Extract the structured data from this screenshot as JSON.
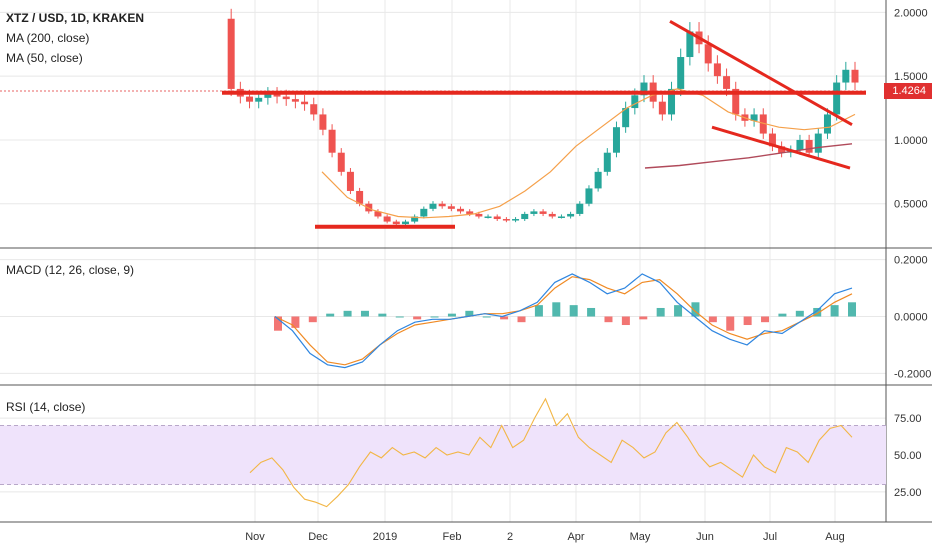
{
  "legend": {
    "symbol": "XTZ / USD, 1D, KRAKEN",
    "ma200": "MA (200, close)",
    "ma50": "MA (50, close)",
    "macd": "MACD (12, 26, close, 9)",
    "rsi": "RSI (14, close)"
  },
  "last_price": "1.4264",
  "colors": {
    "candle_up": "#26a69a",
    "candle_down": "#ef5350",
    "ma50": "#f5a04a",
    "ma200": "#b04a5a",
    "trendline": "#e5281e",
    "macd_line": "#2f86e0",
    "signal_line": "#f08a24",
    "hist_pos": "#26a69a",
    "hist_neg": "#ef5350",
    "rsi_line": "#f2b646",
    "rsi_band": "#efe3fb",
    "grid": "#e8e8e8"
  },
  "chart_data": [
    {
      "type": "candlestick",
      "panel": "price",
      "yaxis_ticks": [
        "2.0000",
        "1.5000",
        "1.0000",
        "0.5000"
      ],
      "ylim": [
        0.2,
        2.05
      ],
      "x_ticks": [
        "Nov",
        "Dec",
        "2019",
        "Feb",
        "2",
        "Apr",
        "May",
        "Jun",
        "Jul",
        "Aug"
      ],
      "close_path": [
        1.95,
        1.4,
        1.34,
        1.3,
        1.33,
        1.36,
        1.34,
        1.32,
        1.3,
        1.28,
        1.2,
        1.08,
        0.9,
        0.75,
        0.6,
        0.5,
        0.44,
        0.4,
        0.36,
        0.34,
        0.36,
        0.4,
        0.46,
        0.5,
        0.48,
        0.46,
        0.44,
        0.42,
        0.4,
        0.4,
        0.38,
        0.37,
        0.38,
        0.42,
        0.44,
        0.42,
        0.4,
        0.4,
        0.42,
        0.5,
        0.62,
        0.75,
        0.9,
        1.1,
        1.25,
        1.35,
        1.45,
        1.3,
        1.2,
        1.4,
        1.65,
        1.85,
        1.75,
        1.6,
        1.5,
        1.4,
        1.2,
        1.15,
        1.2,
        1.05,
        0.95,
        0.9,
        0.92,
        1.0,
        0.9,
        1.05,
        1.2,
        1.45,
        1.55,
        1.45
      ],
      "ma50_path": [
        0.75,
        0.55,
        0.45,
        0.4,
        0.39,
        0.4,
        0.42,
        0.48,
        0.6,
        0.75,
        0.95,
        1.1,
        1.25,
        1.35,
        1.4,
        1.35,
        1.22,
        1.15,
        1.1,
        1.08,
        1.1,
        1.2
      ],
      "ma200_path": [
        0.78,
        0.8,
        0.83,
        0.86,
        0.9,
        0.94,
        0.97
      ]
    },
    {
      "type": "histogram+line",
      "panel": "macd",
      "yaxis_ticks": [
        "0.2000",
        "0.0000",
        "-0.2000"
      ],
      "ylim": [
        -0.22,
        0.22
      ],
      "macd_path": [
        0.0,
        -0.05,
        -0.13,
        -0.17,
        -0.18,
        -0.16,
        -0.1,
        -0.05,
        -0.02,
        -0.01,
        -0.01,
        0.0,
        0.01,
        0.0,
        0.02,
        0.05,
        0.12,
        0.15,
        0.12,
        0.08,
        0.1,
        0.15,
        0.12,
        0.05,
        0.0,
        -0.05,
        -0.08,
        -0.1,
        -0.05,
        -0.06,
        -0.02,
        0.02,
        0.08,
        0.1
      ],
      "signal_path": [
        0.0,
        -0.03,
        -0.1,
        -0.16,
        -0.17,
        -0.15,
        -0.1,
        -0.06,
        -0.03,
        -0.02,
        -0.01,
        0.0,
        0.01,
        0.01,
        0.02,
        0.04,
        0.1,
        0.14,
        0.13,
        0.1,
        0.08,
        0.12,
        0.13,
        0.08,
        0.02,
        -0.03,
        -0.06,
        -0.08,
        -0.06,
        -0.05,
        -0.02,
        0.01,
        0.05,
        0.08
      ],
      "hist_values": [
        -0.05,
        -0.04,
        -0.02,
        0.01,
        0.02,
        0.02,
        0.01,
        0.0,
        -0.01,
        0.0,
        0.01,
        0.02,
        0.0,
        -0.01,
        -0.02,
        0.04,
        0.05,
        0.04,
        0.03,
        -0.02,
        -0.03,
        -0.01,
        0.03,
        0.04,
        0.05,
        -0.02,
        -0.05,
        -0.03,
        -0.02,
        0.01,
        0.02,
        0.03,
        0.04,
        0.05
      ]
    },
    {
      "type": "line",
      "panel": "rsi",
      "yaxis_ticks": [
        "75.00",
        "50.00",
        "25.00"
      ],
      "ylim": [
        10,
        92
      ],
      "band": [
        30,
        70
      ],
      "rsi_path": [
        38,
        45,
        48,
        40,
        28,
        20,
        18,
        15,
        22,
        30,
        42,
        52,
        48,
        55,
        50,
        52,
        48,
        55,
        50,
        52,
        50,
        62,
        55,
        70,
        55,
        60,
        75,
        88,
        70,
        78,
        62,
        55,
        50,
        45,
        60,
        55,
        48,
        52,
        65,
        72,
        62,
        50,
        42,
        45,
        40,
        35,
        50,
        42,
        38,
        55,
        52,
        45,
        60,
        68,
        70,
        62
      ]
    }
  ]
}
